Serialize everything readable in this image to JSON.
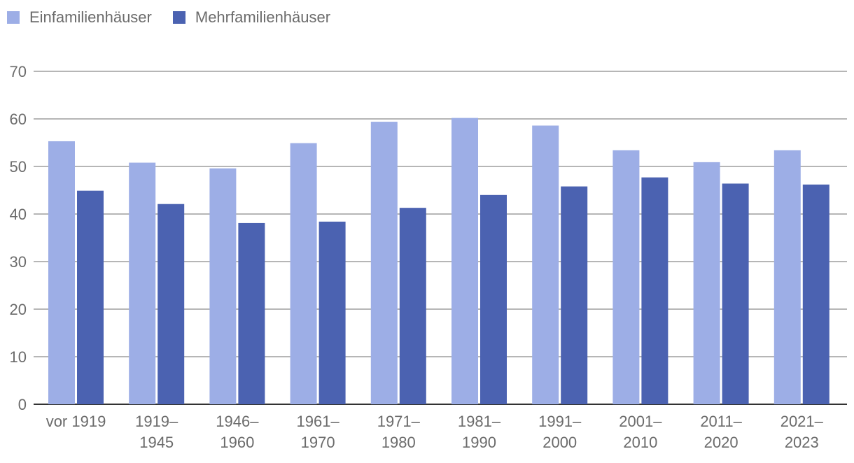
{
  "chart_data": {
    "type": "bar",
    "title": "",
    "xlabel": "",
    "ylabel": "",
    "ylim": [
      0,
      70
    ],
    "yticks": [
      0,
      10,
      20,
      30,
      40,
      50,
      60,
      70
    ],
    "grid": true,
    "legend_position": "top-left",
    "categories": [
      [
        "vor 1919"
      ],
      [
        "1919–",
        "1945"
      ],
      [
        "1946–",
        "1960"
      ],
      [
        "1961–",
        "1970"
      ],
      [
        "1971–",
        "1980"
      ],
      [
        "1981–",
        "1990"
      ],
      [
        "1991–",
        "2000"
      ],
      [
        "2001–",
        "2010"
      ],
      [
        "2011–",
        "2020"
      ],
      [
        "2021–",
        "2023"
      ]
    ],
    "series": [
      {
        "name": "Einfamilienhäuser",
        "color": "#9daee6",
        "values": [
          55.3,
          50.8,
          49.6,
          54.9,
          59.4,
          60.2,
          58.6,
          53.4,
          50.9,
          53.4
        ]
      },
      {
        "name": "Mehrfamilienhäuser",
        "color": "#4b62b1",
        "values": [
          44.9,
          42.1,
          38.1,
          38.4,
          41.3,
          44.0,
          45.8,
          47.7,
          46.4,
          46.2
        ]
      }
    ]
  }
}
